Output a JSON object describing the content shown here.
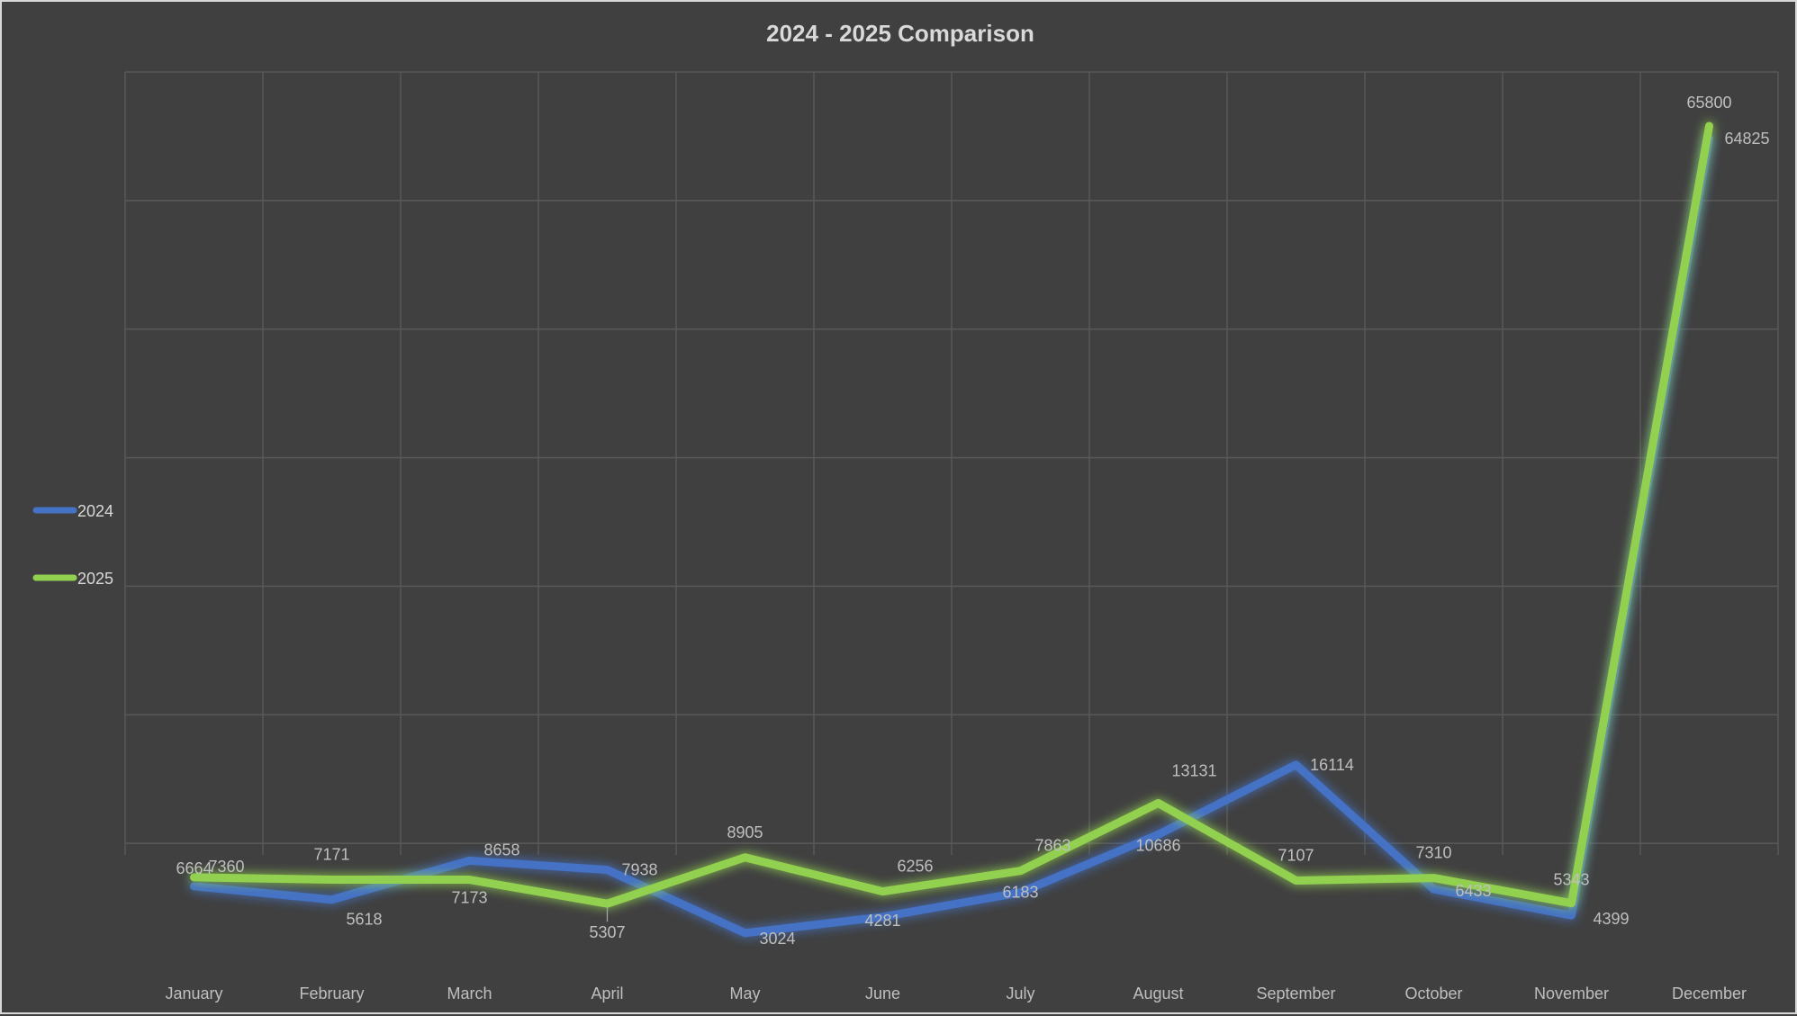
{
  "chart_data": {
    "type": "line",
    "title": "2024 - 2025 Comparison",
    "xlabel": "",
    "ylabel": "",
    "categories": [
      "January",
      "February",
      "March",
      "April",
      "May",
      "June",
      "July",
      "August",
      "September",
      "October",
      "November",
      "December"
    ],
    "ylim": [
      0,
      70000
    ],
    "grid": true,
    "legend_position": "left",
    "series": [
      {
        "name": "2024",
        "color": "#4472c4",
        "values": [
          6664,
          5618,
          8658,
          7938,
          3024,
          4281,
          6183,
          10686,
          16114,
          6433,
          4399,
          64825
        ]
      },
      {
        "name": "2025",
        "color": "#92d050",
        "values": [
          7360,
          7171,
          7173,
          5307,
          8905,
          6256,
          7863,
          13131,
          7107,
          7310,
          5343,
          65800
        ]
      }
    ]
  }
}
